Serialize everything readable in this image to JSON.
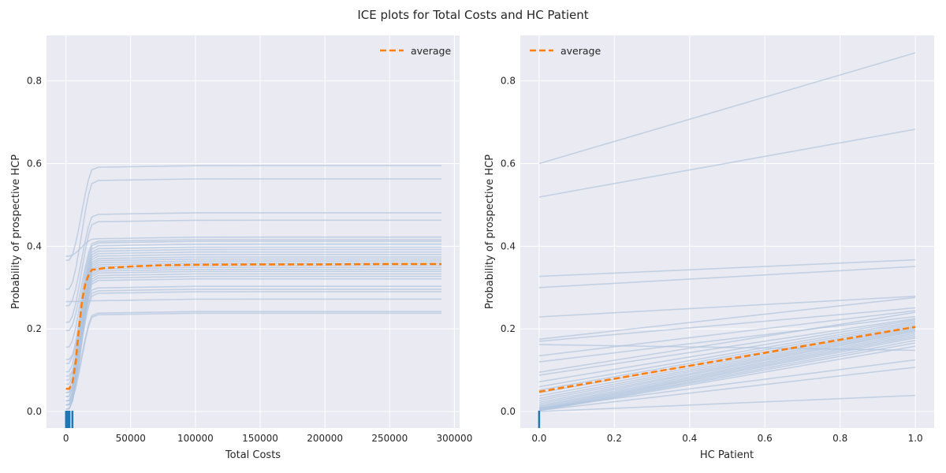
{
  "figure": {
    "title": "ICE plots for Total Costs and HC Patient"
  },
  "colors": {
    "background": "#eaeaf2",
    "ice": "#b0c4de",
    "average": "#ff7f0e",
    "rug": "#1f77b4",
    "grid": "#ffffff"
  },
  "chart_data": [
    {
      "type": "line",
      "title": "",
      "xlabel": "Total Costs",
      "ylabel": "Probability of prospective HCP",
      "xlim": [
        -15000,
        304000
      ],
      "ylim": [
        -0.04,
        0.91
      ],
      "xticks": [
        0,
        50000,
        100000,
        150000,
        200000,
        250000,
        300000
      ],
      "xtick_labels": [
        "0",
        "50000",
        "100000",
        "150000",
        "200000",
        "250000",
        "300000"
      ],
      "yticks": [
        0.0,
        0.2,
        0.4,
        0.6,
        0.8
      ],
      "ytick_labels": [
        "0.0",
        "0.2",
        "0.4",
        "0.6",
        "0.8"
      ],
      "grid": true,
      "legend": {
        "position": "top-right",
        "entries": [
          "average"
        ]
      },
      "rug": [
        100,
        600,
        1200,
        1900,
        2700,
        5000
      ],
      "x": [
        0,
        2500,
        5000,
        7500,
        10000,
        12500,
        15000,
        17500,
        20000,
        25000,
        30000,
        40000,
        50000,
        75000,
        100000,
        150000,
        200000,
        250000,
        290000
      ],
      "average": [
        0.055,
        0.055,
        0.07,
        0.12,
        0.2,
        0.27,
        0.31,
        0.33,
        0.343,
        0.345,
        0.347,
        0.349,
        0.351,
        0.354,
        0.355,
        0.356,
        0.356,
        0.357,
        0.357
      ],
      "ice_series": [
        {
          "start": 0.37,
          "plateau": 0.595
        },
        {
          "start": 0.3,
          "plateau": 0.563
        },
        {
          "start": 0.26,
          "plateau": 0.481
        },
        {
          "start": 0.22,
          "plateau": 0.463
        },
        {
          "start": 0.38,
          "plateau": 0.422
        },
        {
          "start": 0.2,
          "plateau": 0.416
        },
        {
          "start": 0.16,
          "plateau": 0.412
        },
        {
          "start": 0.12,
          "plateau": 0.405
        },
        {
          "start": 0.1,
          "plateau": 0.398
        },
        {
          "start": 0.08,
          "plateau": 0.392
        },
        {
          "start": 0.07,
          "plateau": 0.386
        },
        {
          "start": 0.06,
          "plateau": 0.38
        },
        {
          "start": 0.05,
          "plateau": 0.374
        },
        {
          "start": 0.04,
          "plateau": 0.369
        },
        {
          "start": 0.04,
          "plateau": 0.364
        },
        {
          "start": 0.03,
          "plateau": 0.359
        },
        {
          "start": 0.03,
          "plateau": 0.354
        },
        {
          "start": 0.02,
          "plateau": 0.349
        },
        {
          "start": 0.02,
          "plateau": 0.344
        },
        {
          "start": 0.02,
          "plateau": 0.339
        },
        {
          "start": 0.01,
          "plateau": 0.333
        },
        {
          "start": 0.01,
          "plateau": 0.327
        },
        {
          "start": 0.01,
          "plateau": 0.321
        },
        {
          "start": 0.13,
          "plateau": 0.303
        },
        {
          "start": 0.09,
          "plateau": 0.296
        },
        {
          "start": 0.05,
          "plateau": 0.29
        },
        {
          "start": 0.27,
          "plateau": 0.272
        },
        {
          "start": 0.03,
          "plateau": 0.242
        },
        {
          "start": 0.02,
          "plateau": 0.238
        }
      ]
    },
    {
      "type": "line",
      "title": "",
      "xlabel": "HC Patient",
      "ylabel": "Probability of prospective HCP",
      "xlim": [
        -0.05,
        1.05
      ],
      "ylim": [
        -0.04,
        0.91
      ],
      "xticks": [
        0.0,
        0.2,
        0.4,
        0.6,
        0.8,
        1.0
      ],
      "xtick_labels": [
        "0.0",
        "0.2",
        "0.4",
        "0.6",
        "0.8",
        "1.0"
      ],
      "yticks": [
        0.0,
        0.2,
        0.4,
        0.6,
        0.8
      ],
      "ytick_labels": [
        "0.0",
        "0.2",
        "0.4",
        "0.6",
        "0.8"
      ],
      "grid": true,
      "legend": {
        "position": "top-left",
        "entries": [
          "average"
        ]
      },
      "rug": [
        0.0
      ],
      "x": [
        0.0,
        1.0
      ],
      "average": [
        0.048,
        0.205
      ],
      "ice_series": [
        [
          0.6,
          0.868
        ],
        [
          0.519,
          0.683
        ],
        [
          0.327,
          0.367
        ],
        [
          0.3,
          0.351
        ],
        [
          0.229,
          0.279
        ],
        [
          0.175,
          0.276
        ],
        [
          0.17,
          0.251
        ],
        [
          0.162,
          0.148
        ],
        [
          0.135,
          0.244
        ],
        [
          0.12,
          0.23
        ],
        [
          0.095,
          0.24
        ],
        [
          0.088,
          0.225
        ],
        [
          0.072,
          0.222
        ],
        [
          0.06,
          0.218
        ],
        [
          0.052,
          0.214
        ],
        [
          0.045,
          0.21
        ],
        [
          0.038,
          0.206
        ],
        [
          0.032,
          0.203
        ],
        [
          0.027,
          0.2
        ],
        [
          0.022,
          0.197
        ],
        [
          0.018,
          0.194
        ],
        [
          0.014,
          0.19
        ],
        [
          0.011,
          0.186
        ],
        [
          0.008,
          0.182
        ],
        [
          0.006,
          0.178
        ],
        [
          0.004,
          0.172
        ],
        [
          0.003,
          0.166
        ],
        [
          0.002,
          0.158
        ],
        [
          0.008,
          0.125
        ],
        [
          0.003,
          0.107
        ],
        [
          0.0,
          0.039
        ]
      ]
    }
  ]
}
